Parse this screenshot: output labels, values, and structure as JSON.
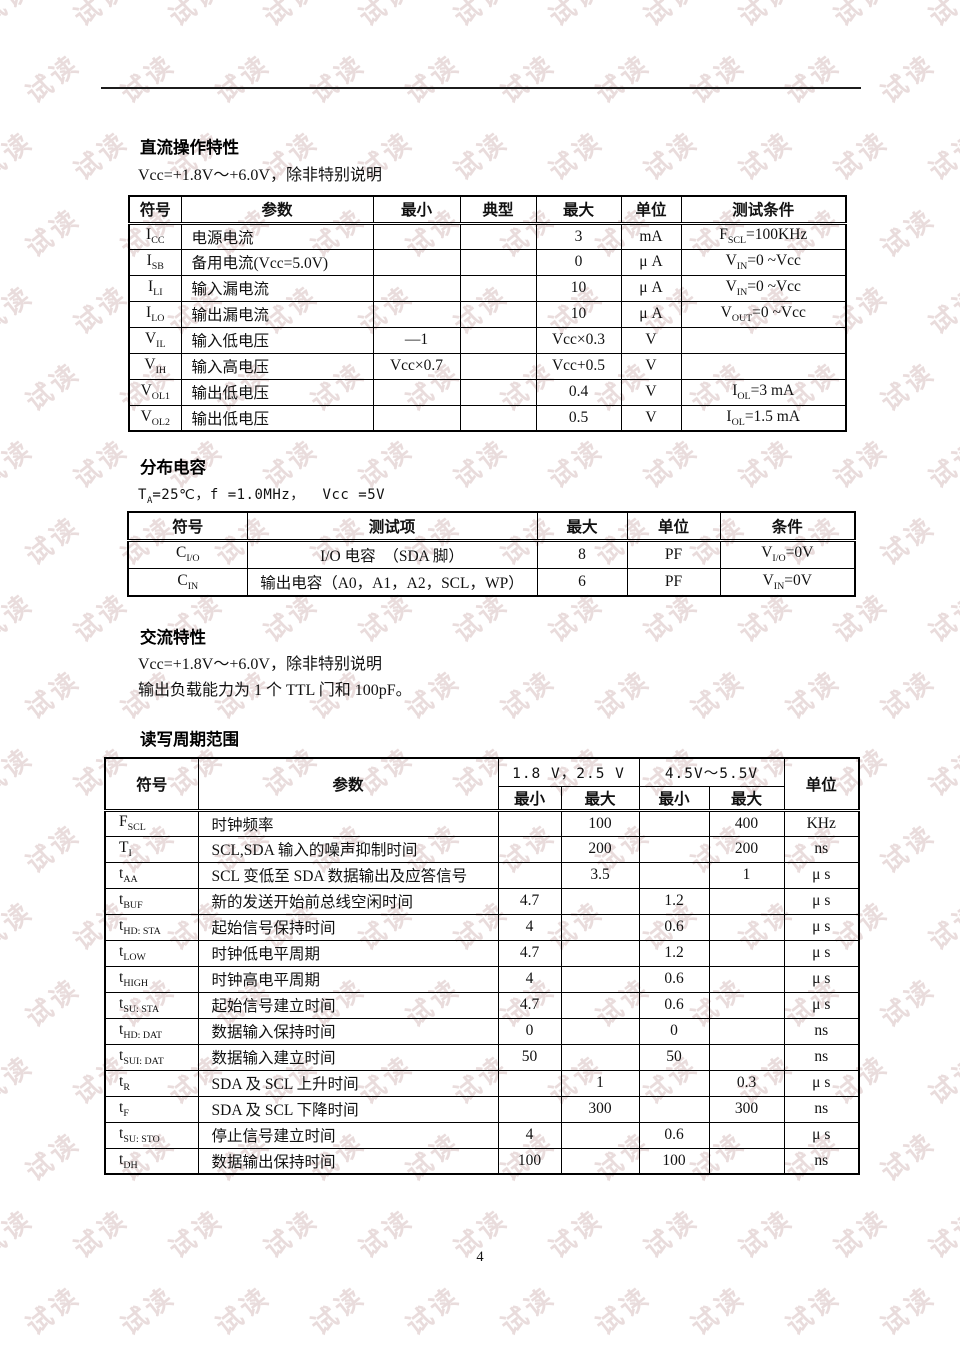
{
  "watermark": {
    "text": "试读",
    "color": "#e9dcdc"
  },
  "dc_section": {
    "title": "直流操作特性",
    "subtitle": "Vcc=+1.8V～+6.0V，除非特别说明",
    "table": {
      "headers": [
        "符号",
        "参数",
        "最小",
        "典型",
        "最大",
        "单位",
        "测试条件"
      ],
      "rows": [
        [
          "I_{CC}",
          "电源电流",
          "",
          "",
          "3",
          "mA",
          "F_{SCL}=100KHz"
        ],
        [
          "I_{SB}",
          "备用电流(Vcc=5.0V)",
          "",
          "",
          "0",
          "μ A",
          "V_{IN}=0 ~Vcc"
        ],
        [
          "I_{LI}",
          "输入漏电流",
          "",
          "",
          "10",
          "μ A",
          "V_{IN}=0 ~Vcc"
        ],
        [
          "I_{LO}",
          "输出漏电流",
          "",
          "",
          "10",
          "μ A",
          "V_{OUT}=0 ~Vcc"
        ],
        [
          "V_{IL}",
          "输入低电压",
          "—1",
          "",
          "Vcc×0.3",
          "V",
          ""
        ],
        [
          "V_{IH}",
          "输入高电压",
          "Vcc×0.7",
          "",
          "Vcc+0.5",
          "V",
          ""
        ],
        [
          "V_{OL1}",
          "输出低电压",
          "",
          "",
          "0.4",
          "V",
          "I_{OL}=3 mA"
        ],
        [
          "V_{OL2}",
          "输出低电压",
          "",
          "",
          "0.5",
          "V",
          "I_{OL}=1.5 mA"
        ]
      ]
    }
  },
  "cap_section": {
    "title": "分布电容",
    "subtitle": "T_{A}=25℃，f =1.0MHz，  Vcc =5V",
    "table": {
      "headers": [
        "符号",
        "测试项",
        "最大",
        "单位",
        "条件"
      ],
      "rows": [
        [
          "C_{I/O}",
          "I/O 电容　（SDA 脚）",
          "8",
          "PF",
          "V_{I/O}=0V"
        ],
        [
          "C_{IN}",
          "输出电容（A0，A1，A2，SCL，WP）",
          "6",
          "PF",
          "V_{IN}=0V"
        ]
      ]
    }
  },
  "ac_section": {
    "title": "交流特性",
    "line1": "Vcc=+1.8V～+6.0V，除非特别说明",
    "line2": "输出负载能力为 1 个 TTL 门和 100pF。"
  },
  "rw_section": {
    "title": "读写周期范围",
    "table": {
      "col_symbol": "符号",
      "col_param": "参数",
      "group1": "1.8 V，2.5 V",
      "group2": "4.5V～5.5V",
      "col_unit": "单位",
      "sub_min": "最小",
      "sub_max": "最大",
      "rows": [
        [
          "F_{SCL}",
          "时钟频率",
          "",
          "100",
          "",
          "400",
          "KHz"
        ],
        [
          "T_{I}",
          "SCL,SDA 输入的噪声抑制时间",
          "",
          "200",
          "",
          "200",
          "ns"
        ],
        [
          "t_{AA}",
          "SCL 变低至 SDA 数据输出及应答信号",
          "",
          "3.5",
          "",
          "1",
          "μ s"
        ],
        [
          "t_{BUF}",
          "新的发送开始前总线空闲时间",
          "4.7",
          "",
          "1.2",
          "",
          "μ s"
        ],
        [
          "t_{HD: STA}",
          "起始信号保持时间",
          "4",
          "",
          "0.6",
          "",
          "μ s"
        ],
        [
          "t_{LOW}",
          "时钟低电平周期",
          "4.7",
          "",
          "1.2",
          "",
          "μ s"
        ],
        [
          "t_{HIGH}",
          "时钟高电平周期",
          "4",
          "",
          "0.6",
          "",
          "μ s"
        ],
        [
          "t_{SU: STA}",
          "起始信号建立时间",
          "4.7",
          "",
          "0.6",
          "",
          "μ s"
        ],
        [
          "t_{HD: DAT}",
          "数据输入保持时间",
          "0",
          "",
          "0",
          "",
          "ns"
        ],
        [
          "t_{SUI: DAT}",
          "数据输入建立时间",
          "50",
          "",
          "50",
          "",
          "ns"
        ],
        [
          "t_{R}",
          "SDA 及 SCL 上升时间",
          "",
          "1",
          "",
          "0.3",
          "μ s"
        ],
        [
          "t_{F}",
          "SDA 及 SCL 下降时间",
          "",
          "300",
          "",
          "300",
          "ns"
        ],
        [
          "t_{SU: STO}",
          "停止信号建立时间",
          "4",
          "",
          "0.6",
          "",
          "μ s"
        ],
        [
          "t_{DH}",
          "数据输出保持时间",
          "100",
          "",
          "100",
          "",
          "ns"
        ]
      ]
    }
  },
  "page_footer": {
    "page_number": "4"
  }
}
